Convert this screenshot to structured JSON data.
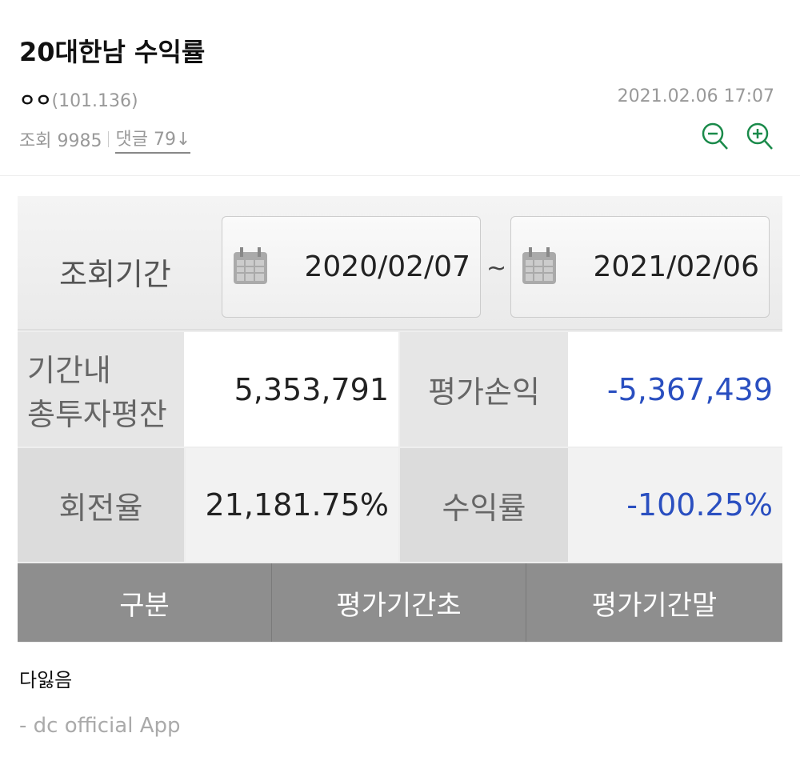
{
  "post": {
    "title": "20대한남 수익률",
    "author_name": "ㅇㅇ",
    "author_ip": "(101.136)",
    "date": "2021.02.06 17:07",
    "views_label": "조회 9985",
    "comments_label": "댓글 79↓",
    "body": "다잃음",
    "signature": "- dc official App"
  },
  "icons": {
    "zoom_out": "zoom-out-icon",
    "zoom_in": "zoom-in-icon",
    "calendar": "calendar-icon"
  },
  "colors": {
    "accent": "#1a8a4a",
    "negative": "#2a4fc0"
  },
  "screenshot": {
    "period_label": "조회기간",
    "start_date": "2020/02/07",
    "separator": "~",
    "end_date": "2021/02/06",
    "invest_label_1": "기간내",
    "invest_label_2": "총투자평잔",
    "invest_value": "5,353,791",
    "pnl_label": "평가손익",
    "pnl_value": "-5,367,439",
    "turnover_label": "회전율",
    "turnover_value": "21,181.75%",
    "return_label": "수익률",
    "return_value": "-100.25%",
    "headers": [
      "구분",
      "평가기간초",
      "평가기간말"
    ]
  }
}
